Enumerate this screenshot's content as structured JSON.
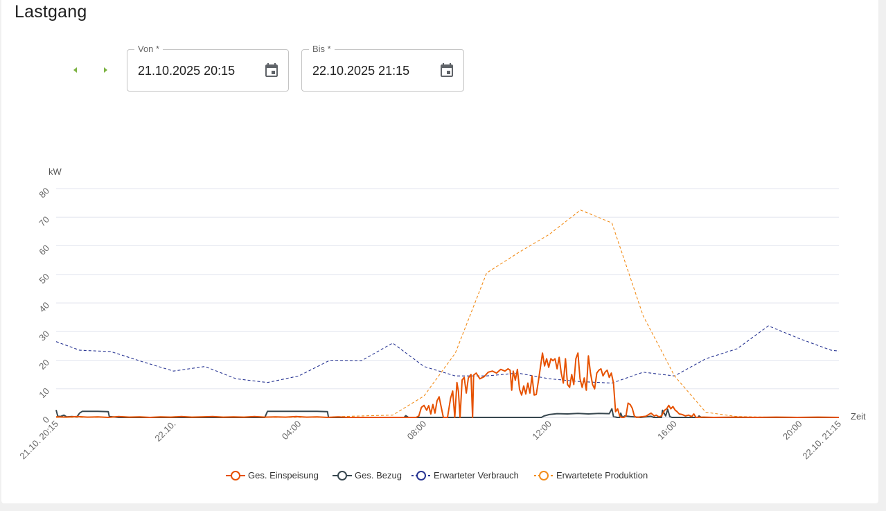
{
  "page": {
    "title": "Lastgang"
  },
  "nav": {
    "prev_icon": "chevron-left-icon",
    "next_icon": "chevron-right-icon",
    "accent": "#7cb342"
  },
  "from": {
    "label": "Von *",
    "value": "21.10.2025 20:15",
    "icon": "calendar-icon"
  },
  "to": {
    "label": "Bis *",
    "value": "22.10.2025 21:15",
    "icon": "calendar-icon"
  },
  "chart_data": {
    "type": "line",
    "ylabel": "kW",
    "xlabel": "Zeit",
    "ylim": [
      0,
      80
    ],
    "yticks": [
      0,
      10,
      20,
      30,
      40,
      50,
      60,
      70,
      80
    ],
    "xlim": [
      "21.10. 20:15",
      "22.10. 21:15"
    ],
    "xticks": [
      {
        "t": 0,
        "label": "21.10. 20:15"
      },
      {
        "t": 225,
        "label": "22.10."
      },
      {
        "t": 465,
        "label": "04:00"
      },
      {
        "t": 705,
        "label": "08:00"
      },
      {
        "t": 945,
        "label": "12:00"
      },
      {
        "t": 1185,
        "label": "16:00"
      },
      {
        "t": 1425,
        "label": "20:00"
      },
      {
        "t": 1500,
        "label": "22.10. 21:15"
      }
    ],
    "x_unit": "minutes since 21.10.2025 20:15",
    "grid": true,
    "legend_position": "bottom",
    "series": [
      {
        "name": "Ges. Einspeisung",
        "color": "#e65100",
        "style": "solid",
        "points": [
          [
            0,
            0.2
          ],
          [
            20,
            0.1
          ],
          [
            40,
            0.3
          ],
          [
            60,
            0.1
          ],
          [
            80,
            0.2
          ],
          [
            100,
            0
          ],
          [
            120,
            0.3
          ],
          [
            140,
            0.1
          ],
          [
            160,
            0.2
          ],
          [
            180,
            0
          ],
          [
            200,
            0.2
          ],
          [
            220,
            0.1
          ],
          [
            240,
            0.3
          ],
          [
            260,
            0.1
          ],
          [
            280,
            0.2
          ],
          [
            300,
            0.3
          ],
          [
            320,
            0.1
          ],
          [
            340,
            0.2
          ],
          [
            360,
            0.1
          ],
          [
            380,
            0.3
          ],
          [
            400,
            0.1
          ],
          [
            420,
            0.2
          ],
          [
            440,
            0.1
          ],
          [
            460,
            0.3
          ],
          [
            480,
            0.1
          ],
          [
            500,
            0.2
          ],
          [
            520,
            0
          ],
          [
            540,
            0.2
          ],
          [
            560,
            0
          ],
          [
            580,
            0
          ],
          [
            600,
            0
          ],
          [
            620,
            0
          ],
          [
            640,
            0
          ],
          [
            660,
            0
          ],
          [
            680,
            0
          ],
          [
            690,
            0
          ],
          [
            695,
            0.5
          ],
          [
            700,
            3.5
          ],
          [
            705,
            4.2
          ],
          [
            710,
            2.5
          ],
          [
            714,
            4.1
          ],
          [
            718,
            1.2
          ],
          [
            722,
            4.5
          ],
          [
            726,
            1.5
          ],
          [
            730,
            5.8
          ],
          [
            734,
            7.2
          ],
          [
            738,
            3.5
          ],
          [
            742,
            0
          ],
          [
            745,
            0
          ],
          [
            750,
            0
          ],
          [
            756,
            6.8
          ],
          [
            760,
            9.2
          ],
          [
            764,
            0
          ],
          [
            768,
            12.2
          ],
          [
            771,
            9
          ],
          [
            774,
            0
          ],
          [
            778,
            13.1
          ],
          [
            782,
            14
          ],
          [
            786,
            8.5
          ],
          [
            790,
            13.8
          ],
          [
            795,
            15
          ],
          [
            798,
            0
          ],
          [
            800,
            14.8
          ],
          [
            805,
            15.5
          ],
          [
            812,
            13.5
          ],
          [
            820,
            14.2
          ],
          [
            828,
            15.8
          ],
          [
            836,
            16.2
          ],
          [
            844,
            15.5
          ],
          [
            852,
            16.8
          ],
          [
            860,
            16.2
          ],
          [
            866,
            17
          ],
          [
            870,
            16.5
          ],
          [
            873,
            9.5
          ],
          [
            876,
            16.2
          ],
          [
            880,
            13
          ],
          [
            884,
            16.8
          ],
          [
            888,
            9.8
          ],
          [
            892,
            7.8
          ],
          [
            896,
            11
          ],
          [
            900,
            8.2
          ],
          [
            904,
            12
          ],
          [
            908,
            8.5
          ],
          [
            912,
            14.5
          ],
          [
            916,
            7.8
          ],
          [
            920,
            8
          ],
          [
            924,
            12.5
          ],
          [
            928,
            17.5
          ],
          [
            932,
            22.5
          ],
          [
            936,
            18
          ],
          [
            940,
            20.5
          ],
          [
            944,
            17.5
          ],
          [
            948,
            20.5
          ],
          [
            952,
            19.8
          ],
          [
            956,
            20.5
          ],
          [
            960,
            17
          ],
          [
            964,
            21
          ],
          [
            968,
            15.5
          ],
          [
            972,
            12
          ],
          [
            976,
            20.5
          ],
          [
            980,
            11.5
          ],
          [
            984,
            10.5
          ],
          [
            988,
            15
          ],
          [
            992,
            11.5
          ],
          [
            996,
            20.5
          ],
          [
            1000,
            22.5
          ],
          [
            1004,
            13.5
          ],
          [
            1008,
            10.5
          ],
          [
            1012,
            13.8
          ],
          [
            1016,
            9.5
          ],
          [
            1020,
            21.5
          ],
          [
            1024,
            15.5
          ],
          [
            1028,
            11.5
          ],
          [
            1032,
            10
          ],
          [
            1036,
            15.5
          ],
          [
            1040,
            16.5
          ],
          [
            1044,
            17
          ],
          [
            1048,
            14.5
          ],
          [
            1052,
            15.8
          ],
          [
            1056,
            16.5
          ],
          [
            1060,
            14
          ],
          [
            1064,
            15.5
          ],
          [
            1068,
            12
          ],
          [
            1072,
            2
          ],
          [
            1076,
            3
          ],
          [
            1080,
            0.5
          ],
          [
            1084,
            0
          ],
          [
            1088,
            0
          ],
          [
            1092,
            0.5
          ],
          [
            1096,
            5
          ],
          [
            1100,
            4.5
          ],
          [
            1104,
            3.2
          ],
          [
            1108,
            0.5
          ],
          [
            1112,
            0
          ],
          [
            1120,
            0.2
          ],
          [
            1130,
            0.4
          ],
          [
            1140,
            1.5
          ],
          [
            1146,
            0.5
          ],
          [
            1150,
            0.8
          ],
          [
            1155,
            0.2
          ],
          [
            1160,
            0.5
          ],
          [
            1166,
            2.5
          ],
          [
            1170,
            3
          ],
          [
            1174,
            4.2
          ],
          [
            1178,
            3
          ],
          [
            1182,
            3.8
          ],
          [
            1186,
            2.6
          ],
          [
            1190,
            2
          ],
          [
            1194,
            1.2
          ],
          [
            1200,
            1
          ],
          [
            1206,
            0.5
          ],
          [
            1212,
            0.8
          ],
          [
            1218,
            0.3
          ],
          [
            1222,
            1.2
          ],
          [
            1226,
            0
          ],
          [
            1240,
            0.1
          ],
          [
            1260,
            0
          ],
          [
            1300,
            0.1
          ],
          [
            1340,
            0
          ],
          [
            1380,
            0.1
          ],
          [
            1420,
            0
          ],
          [
            1460,
            0.1
          ],
          [
            1500,
            0
          ]
        ]
      },
      {
        "name": "Ges. Bezug",
        "color": "#37474f",
        "style": "solid",
        "points": [
          [
            0,
            2.6
          ],
          [
            3,
            0.5
          ],
          [
            8,
            0.3
          ],
          [
            15,
            0.8
          ],
          [
            20,
            0.2
          ],
          [
            30,
            0.3
          ],
          [
            40,
            0.2
          ],
          [
            45,
            1.5
          ],
          [
            50,
            2.1
          ],
          [
            80,
            2.1
          ],
          [
            100,
            2
          ],
          [
            102,
            0.3
          ],
          [
            120,
            0
          ],
          [
            200,
            0
          ],
          [
            300,
            0
          ],
          [
            400,
            0
          ],
          [
            405,
            2.1
          ],
          [
            500,
            2.1
          ],
          [
            520,
            2
          ],
          [
            522,
            0
          ],
          [
            600,
            0
          ],
          [
            667,
            0
          ],
          [
            670,
            0.6
          ],
          [
            675,
            0
          ],
          [
            700,
            0
          ],
          [
            800,
            0
          ],
          [
            930,
            0
          ],
          [
            935,
            0.5
          ],
          [
            945,
            1
          ],
          [
            960,
            1.3
          ],
          [
            980,
            1.2
          ],
          [
            1000,
            1.4
          ],
          [
            1020,
            1.2
          ],
          [
            1040,
            1.4
          ],
          [
            1060,
            1.3
          ],
          [
            1065,
            3
          ],
          [
            1068,
            0.3
          ],
          [
            1075,
            0
          ],
          [
            1080,
            0
          ],
          [
            1082,
            1.5
          ],
          [
            1085,
            0
          ],
          [
            1090,
            0.5
          ],
          [
            1100,
            0.3
          ],
          [
            1120,
            0
          ],
          [
            1140,
            0.4
          ],
          [
            1145,
            0
          ],
          [
            1160,
            0
          ],
          [
            1162,
            2.5
          ],
          [
            1168,
            0.5
          ],
          [
            1172,
            2.8
          ],
          [
            1176,
            0.3
          ],
          [
            1180,
            0
          ],
          [
            1200,
            0
          ],
          [
            1230,
            0
          ],
          [
            1232,
            0.5
          ],
          [
            1236,
            0
          ],
          [
            1300,
            0
          ],
          [
            1400,
            0
          ],
          [
            1500,
            0
          ]
        ]
      },
      {
        "name": "Erwarteter Verbrauch",
        "color": "#283593",
        "style": "dashed",
        "points": [
          [
            0,
            26.5
          ],
          [
            45,
            23.5
          ],
          [
            105,
            23
          ],
          [
            165,
            19.5
          ],
          [
            225,
            16.2
          ],
          [
            285,
            17.8
          ],
          [
            345,
            13.5
          ],
          [
            405,
            12.2
          ],
          [
            465,
            14.5
          ],
          [
            525,
            20
          ],
          [
            585,
            19.8
          ],
          [
            645,
            26
          ],
          [
            705,
            17.8
          ],
          [
            765,
            14.5
          ],
          [
            825,
            14.5
          ],
          [
            885,
            15.5
          ],
          [
            945,
            13.5
          ],
          [
            1005,
            12.5
          ],
          [
            1065,
            12
          ],
          [
            1125,
            15.8
          ],
          [
            1185,
            14.5
          ],
          [
            1245,
            20.5
          ],
          [
            1305,
            24
          ],
          [
            1365,
            32
          ],
          [
            1425,
            27.5
          ],
          [
            1485,
            23.5
          ],
          [
            1500,
            23.2
          ]
        ]
      },
      {
        "name": "Erwartetete Produktion",
        "color": "#f28e1c",
        "style": "dashed",
        "points": [
          [
            0,
            0
          ],
          [
            100,
            0
          ],
          [
            200,
            0
          ],
          [
            300,
            0
          ],
          [
            400,
            0
          ],
          [
            500,
            0
          ],
          [
            585,
            0.5
          ],
          [
            645,
            0.8
          ],
          [
            705,
            7.5
          ],
          [
            765,
            22.5
          ],
          [
            825,
            50.5
          ],
          [
            885,
            57.5
          ],
          [
            945,
            64
          ],
          [
            1005,
            72.5
          ],
          [
            1065,
            68
          ],
          [
            1125,
            35.5
          ],
          [
            1185,
            14.5
          ],
          [
            1245,
            1.8
          ],
          [
            1305,
            0.3
          ],
          [
            1365,
            0.1
          ],
          [
            1425,
            0
          ],
          [
            1500,
            0
          ]
        ]
      }
    ]
  }
}
